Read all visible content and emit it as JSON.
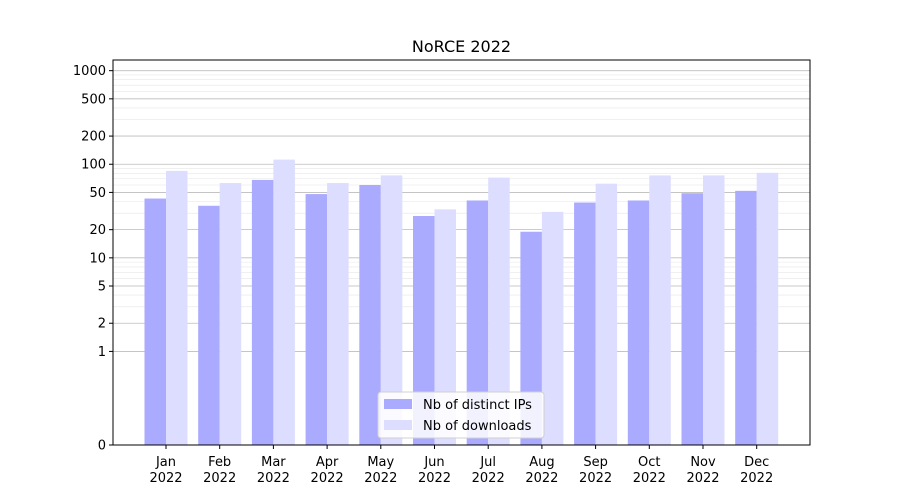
{
  "chart_data": {
    "type": "bar",
    "title": "NoRCE 2022",
    "xlabel": "",
    "ylabel": "",
    "categories": [
      [
        "Jan",
        "2022"
      ],
      [
        "Feb",
        "2022"
      ],
      [
        "Mar",
        "2022"
      ],
      [
        "Apr",
        "2022"
      ],
      [
        "May",
        "2022"
      ],
      [
        "Jun",
        "2022"
      ],
      [
        "Jul",
        "2022"
      ],
      [
        "Aug",
        "2022"
      ],
      [
        "Sep",
        "2022"
      ],
      [
        "Oct",
        "2022"
      ],
      [
        "Nov",
        "2022"
      ],
      [
        "Dec",
        "2022"
      ]
    ],
    "series": [
      {
        "name": "Nb of distinct IPs",
        "color": "#aaaaff",
        "values": [
          43,
          36,
          68,
          48,
          60,
          28,
          41,
          19,
          39,
          41,
          49,
          52
        ]
      },
      {
        "name": "Nb of downloads",
        "color": "#ddddff",
        "values": [
          85,
          63,
          112,
          63,
          76,
          33,
          72,
          31,
          62,
          76,
          76,
          81
        ]
      }
    ],
    "yscale": "symlog",
    "ylim": [
      0,
      1300
    ],
    "yticks": [
      0,
      1,
      2,
      5,
      10,
      20,
      50,
      100,
      200,
      500,
      1000
    ],
    "ytick_labels": [
      "0",
      "1",
      "2",
      "5",
      "10",
      "20",
      "50",
      "100",
      "200",
      "500",
      "1000"
    ],
    "grid": true,
    "legend_position": "lower-center"
  }
}
